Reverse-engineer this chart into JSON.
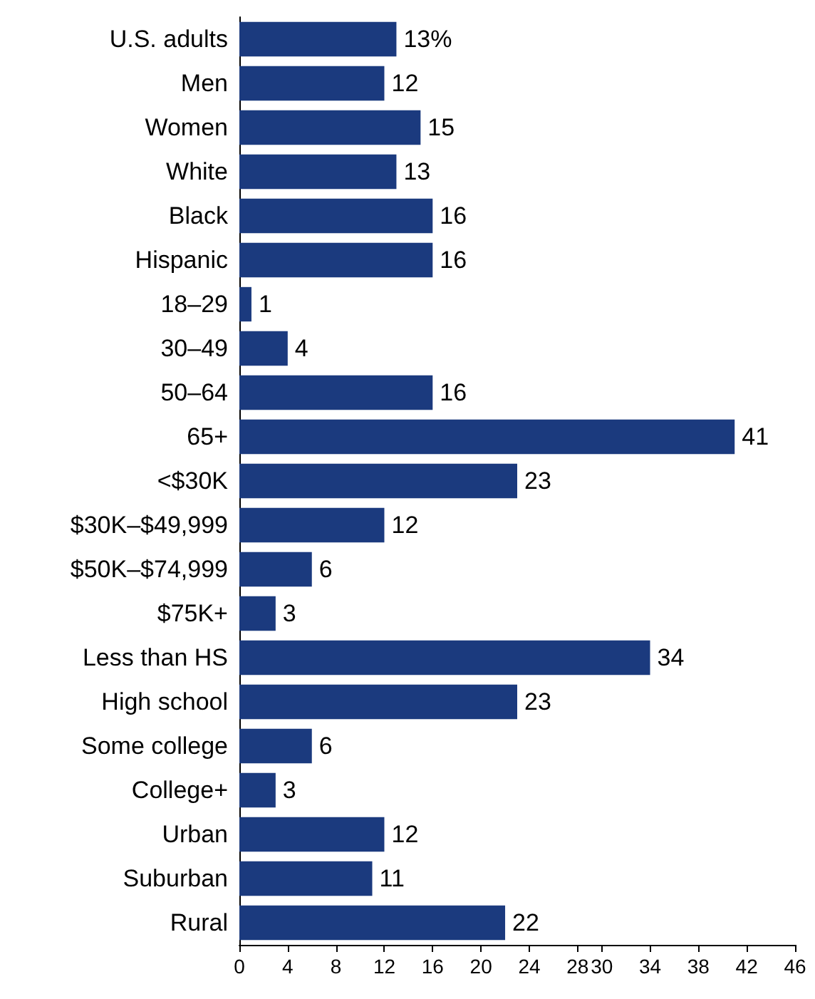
{
  "chart_data": {
    "type": "bar",
    "orientation": "horizontal",
    "categories": [
      "U.S. adults",
      "Men",
      "Women",
      "White",
      "Black",
      "Hispanic",
      "18–29",
      "30–49",
      "50–64",
      "65+",
      "<$30K",
      "$30K–$49,999",
      "$50K–$74,999",
      "$75K+",
      "Less than HS",
      "High school",
      "Some college",
      "College+",
      "Urban",
      "Suburban",
      "Rural"
    ],
    "values": [
      13,
      12,
      15,
      13,
      16,
      16,
      1,
      4,
      16,
      41,
      23,
      12,
      6,
      3,
      34,
      23,
      6,
      3,
      12,
      11,
      22
    ],
    "value_labels": [
      "13%",
      "12",
      "15",
      "13",
      "16",
      "16",
      "1",
      "4",
      "16",
      "41",
      "23",
      "12",
      "6",
      "3",
      "34",
      "23",
      "6",
      "3",
      "12",
      "11",
      "22"
    ],
    "color": "#1b3a7e",
    "xlim": [
      0,
      46
    ],
    "xticks": [
      0,
      4,
      8,
      12,
      16,
      20,
      24,
      28,
      30,
      34,
      38,
      42,
      46
    ]
  }
}
